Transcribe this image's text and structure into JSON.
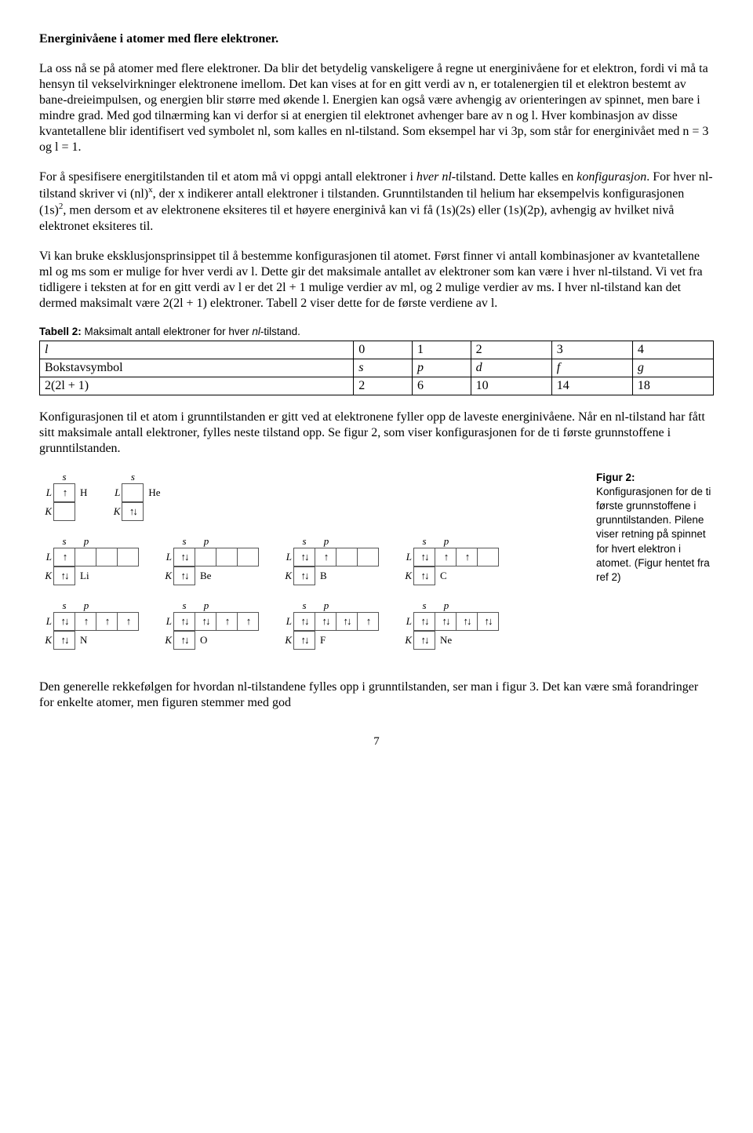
{
  "heading": "Energinivåene i atomer med flere elektroner.",
  "para1": "La oss nå se på atomer med flere elektroner. Da blir det betydelig vanskeligere å regne ut energinivåene for et elektron, fordi vi må ta hensyn til vekselvirkninger elektronene imellom. Det kan vises at for en gitt verdi av n, er totalenergien til et elektron bestemt av bane-dreieimpulsen, og energien blir større med økende l. Energien kan også være avhengig av orienteringen av spinnet, men bare i mindre grad. Med god tilnærming kan vi derfor si at energien til elektronet avhenger bare av n og l. Hver kombinasjon av disse kvantetallene blir identifisert ved symbolet nl, som kalles en nl-tilstand. Som eksempel har vi 3p, som står for energinivået med n = 3 og l = 1.",
  "para2_a": "For å spesifisere energitilstanden til et atom må vi oppgi antall elektroner i ",
  "para2_b": "hver nl",
  "para2_c": "-tilstand. Dette kalles en ",
  "para2_d": "konfigurasjon",
  "para2_e": ". For hver nl-tilstand skriver vi (nl)",
  "para2_f": "x",
  "para2_g": ", der x indikerer antall elektroner i tilstanden. Grunntilstanden til helium har eksempelvis konfigurasjonen (1s)",
  "para2_h": "2",
  "para2_i": ", men dersom et av elektronene eksiteres til et høyere energinivå kan vi få (1s)(2s) eller (1s)(2p), avhengig av hvilket nivå elektronet eksiteres til.",
  "para3": "Vi kan bruke eksklusjonsprinsippet til å bestemme konfigurasjonen til atomet. Først finner vi antall kombinasjoner av kvantetallene ml og ms som er mulige for hver verdi av l. Dette gir det maksimale antallet av elektroner som kan være i hver nl-tilstand. Vi vet fra tidligere i teksten at for en gitt verdi av l er det 2l + 1 mulige verdier av ml, og 2 mulige verdier av ms. I hver nl-tilstand kan det dermed maksimalt være 2(2l + 1) elektroner. Tabell 2 viser dette for de første verdiene av l.",
  "table_caption_a": "Tabell 2:",
  "table_caption_b": " Maksimalt antall elektroner for hver ",
  "table_caption_c": "nl",
  "table_caption_d": "-tilstand.",
  "table": {
    "row1": [
      "l",
      "0",
      "1",
      "2",
      "3",
      "4"
    ],
    "row2": [
      "Bokstavsymbol",
      "s",
      "p",
      "d",
      "f",
      "g"
    ],
    "row3": [
      "2(2l + 1)",
      "2",
      "6",
      "10",
      "14",
      "18"
    ]
  },
  "para4": "Konfigurasjonen til et atom i grunntilstanden er gitt ved at elektronene fyller opp de laveste energinivåene. Når en nl-tilstand har fått sitt maksimale antall elektroner, fylles neste tilstand opp. Se figur 2, som viser konfigurasjonen for de ti første grunnstoffene i grunntilstanden.",
  "figure": {
    "orbital_cols": [
      "s",
      "p"
    ],
    "elements": [
      {
        "name": "H",
        "L": [
          "u",
          "",
          "",
          ""
        ],
        "K": [
          "",
          "",
          "",
          ""
        ],
        "lk_boxes": {
          "L": 1,
          "K": 1
        }
      },
      {
        "name": "He",
        "L": [
          "",
          "",
          "",
          ""
        ],
        "K": [
          "ud",
          "",
          "",
          ""
        ],
        "lk_boxes": {
          "L": 1,
          "K": 1
        }
      },
      {
        "name": "Li",
        "L": [
          "u",
          "",
          "",
          ""
        ],
        "K": [
          "ud",
          "",
          "",
          ""
        ],
        "lk_boxes": {
          "L": 4,
          "K": 1
        }
      },
      {
        "name": "Be",
        "L": [
          "ud",
          "",
          "",
          ""
        ],
        "K": [
          "ud",
          "",
          "",
          ""
        ],
        "lk_boxes": {
          "L": 4,
          "K": 1
        }
      },
      {
        "name": "B",
        "L": [
          "ud",
          "u",
          "",
          ""
        ],
        "K": [
          "ud",
          "",
          "",
          ""
        ],
        "lk_boxes": {
          "L": 4,
          "K": 1
        }
      },
      {
        "name": "C",
        "L": [
          "ud",
          "u",
          "u",
          ""
        ],
        "K": [
          "ud",
          "",
          "",
          ""
        ],
        "lk_boxes": {
          "L": 4,
          "K": 1
        }
      },
      {
        "name": "N",
        "L": [
          "ud",
          "u",
          "u",
          "u"
        ],
        "K": [
          "ud",
          "",
          "",
          ""
        ],
        "lk_boxes": {
          "L": 4,
          "K": 1
        }
      },
      {
        "name": "O",
        "L": [
          "ud",
          "ud",
          "u",
          "u"
        ],
        "K": [
          "ud",
          "",
          "",
          ""
        ],
        "lk_boxes": {
          "L": 4,
          "K": 1
        }
      },
      {
        "name": "F",
        "L": [
          "ud",
          "ud",
          "ud",
          "u"
        ],
        "K": [
          "ud",
          "",
          "",
          ""
        ],
        "lk_boxes": {
          "L": 4,
          "K": 1
        }
      },
      {
        "name": "Ne",
        "L": [
          "ud",
          "ud",
          "ud",
          "ud"
        ],
        "K": [
          "ud",
          "",
          "",
          ""
        ],
        "lk_boxes": {
          "L": 4,
          "K": 1
        }
      }
    ],
    "caption_bold": "Figur 2:",
    "caption_text": " Konfigurasjonen for de ti første grunnstoffene i grunntilstanden. Pilene viser retning på spinnet for hvert elektron i atomet. (Figur hentet fra ref 2)"
  },
  "para5": "Den generelle rekkefølgen for hvordan nl-tilstandene fylles opp i grunntilstanden, ser man i figur 3. Det kan være små forandringer for enkelte atomer, men figuren stemmer med god",
  "page_number": "7"
}
